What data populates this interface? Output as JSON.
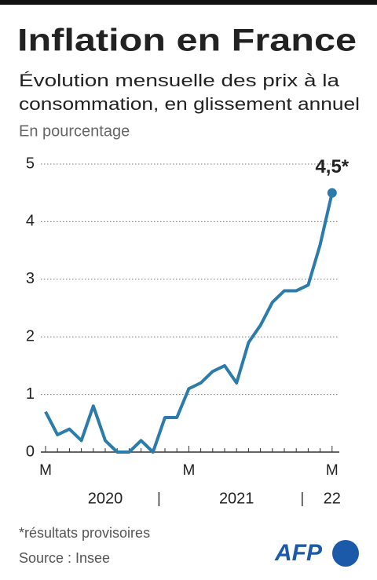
{
  "chart_data": {
    "type": "line",
    "title": "Inflation en France",
    "subtitle": [
      "Évolution mensuelle des prix à la",
      "consommation, en glissement annuel"
    ],
    "unit_label": "En pourcentage",
    "categories": [
      "M",
      null,
      null,
      null,
      null,
      null,
      null,
      null,
      null,
      null,
      null,
      null,
      "M",
      null,
      null,
      null,
      null,
      null,
      null,
      null,
      null,
      null,
      null,
      null,
      "M"
    ],
    "year_labels": [
      "2020",
      "2021",
      "22"
    ],
    "series": [
      {
        "name": "Inflation",
        "color": "#2b7bab",
        "values": [
          0.7,
          0.3,
          0.4,
          0.2,
          0.8,
          0.2,
          0.0,
          0.0,
          0.2,
          0.0,
          0.6,
          0.6,
          1.1,
          1.2,
          1.4,
          1.5,
          1.2,
          1.9,
          2.2,
          2.6,
          2.8,
          2.8,
          2.9,
          3.6,
          4.5
        ],
        "value_labels": [
          null,
          null,
          null,
          null,
          null,
          null,
          null,
          null,
          null,
          null,
          null,
          null,
          null,
          null,
          null,
          null,
          null,
          null,
          null,
          null,
          null,
          null,
          null,
          null,
          "4,5*"
        ]
      }
    ],
    "ylim": [
      0,
      5
    ],
    "yticks": [
      0,
      1,
      2,
      3,
      4,
      5
    ],
    "grid": true,
    "footnote": "*résultats provisoires",
    "source": "Source : Insee",
    "logo": "AFP"
  }
}
